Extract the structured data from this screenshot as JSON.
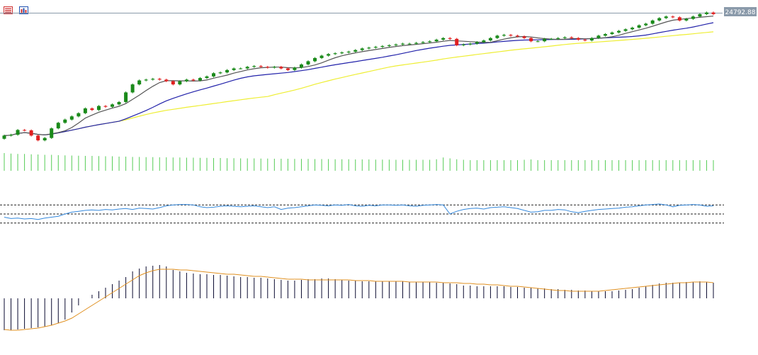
{
  "toolbar": {
    "items": [
      {
        "icon": "list-view-icon",
        "color": "#d03030"
      },
      {
        "icon": "indicator-window-icon",
        "color": "#2050b0"
      }
    ]
  },
  "chart_data": {
    "type": "candlestick",
    "price_label": "24792.88",
    "colors": {
      "up": "#1a8a1a",
      "down": "#e02020",
      "ma_short": "#555555",
      "ma_mid": "#2222aa",
      "ma_long": "#eeee33",
      "volume": "#55cc55",
      "rsi": "#3388dd",
      "macd_hist": "#0a0a30",
      "macd_signal": "#e09020",
      "price_tag_bg": "#8a9aaa"
    },
    "close": [
      22860,
      22870,
      22930,
      22925,
      22860,
      22800,
      22830,
      22950,
      23020,
      23060,
      23100,
      23140,
      23200,
      23180,
      23230,
      23220,
      23250,
      23280,
      23400,
      23500,
      23550,
      23560,
      23570,
      23560,
      23540,
      23500,
      23540,
      23560,
      23550,
      23580,
      23600,
      23640,
      23650,
      23680,
      23700,
      23700,
      23720,
      23730,
      23720,
      23710,
      23720,
      23700,
      23680,
      23710,
      23750,
      23790,
      23830,
      23860,
      23880,
      23890,
      23900,
      23910,
      23930,
      23950,
      23960,
      23970,
      23980,
      23990,
      24000,
      24010,
      24010,
      24020,
      24030,
      24040,
      24060,
      24080,
      24070,
      23990,
      24000,
      24010,
      24030,
      24050,
      24080,
      24110,
      24120,
      24110,
      24100,
      24080,
      24040,
      24040,
      24070,
      24070,
      24080,
      24090,
      24080,
      24060,
      24050,
      24080,
      24110,
      24130,
      24150,
      24170,
      24190,
      24210,
      24240,
      24260,
      24300,
      24330,
      24350,
      24340,
      24300,
      24320,
      24350,
      24380,
      24400,
      24380
    ],
    "volume": [
      1.0,
      0.97,
      0.95,
      0.95,
      0.93,
      0.92,
      0.9,
      0.9,
      0.88,
      0.87,
      0.86,
      0.85,
      0.84,
      0.84,
      0.83,
      0.82,
      0.82,
      0.8,
      0.8,
      0.78,
      0.78,
      0.77,
      0.77,
      0.76,
      0.76,
      0.75,
      0.75,
      0.74,
      0.74,
      0.73,
      0.73,
      0.72,
      0.72,
      0.71,
      0.71,
      0.7,
      0.7,
      0.7,
      0.69,
      0.69,
      0.68,
      0.68,
      0.68,
      0.67,
      0.67,
      0.67,
      0.66,
      0.66,
      0.66,
      0.65,
      0.65,
      0.65,
      0.64,
      0.64,
      0.64,
      0.63,
      0.63,
      0.63,
      0.62,
      0.62,
      0.62,
      0.62,
      0.62,
      0.62,
      0.65,
      0.75,
      0.7,
      0.65,
      0.62,
      0.6,
      0.6,
      0.6,
      0.6,
      0.6,
      0.6,
      0.6,
      0.6,
      0.62,
      0.64,
      0.6,
      0.6,
      0.6,
      0.6,
      0.6,
      0.6,
      0.6,
      0.6,
      0.6,
      0.6,
      0.6,
      0.6,
      0.6,
      0.6,
      0.6,
      0.6,
      0.6,
      0.6,
      0.6,
      0.6,
      0.6,
      0.6,
      0.6,
      0.6,
      0.6,
      0.6,
      0.6
    ],
    "rsi": {
      "levels": [
        70,
        50,
        30
      ],
      "values": [
        43,
        40,
        41,
        39,
        40,
        38,
        41,
        43,
        45,
        50,
        54,
        56,
        58,
        59,
        58,
        60,
        59,
        61,
        62,
        60,
        63,
        62,
        61,
        64,
        68,
        70,
        71,
        71,
        70,
        66,
        64,
        65,
        67,
        68,
        67,
        66,
        67,
        68,
        66,
        64,
        66,
        60,
        63,
        64,
        66,
        68,
        70,
        69,
        68,
        70,
        69,
        71,
        68,
        67,
        69,
        68,
        70,
        70,
        69,
        70,
        68,
        67,
        69,
        70,
        71,
        70,
        50,
        56,
        60,
        62,
        63,
        61,
        64,
        65,
        66,
        64,
        62,
        58,
        54,
        55,
        58,
        58,
        60,
        59,
        55,
        53,
        56,
        58,
        60,
        61,
        62,
        63,
        65,
        66,
        68,
        70,
        71,
        72,
        70,
        66,
        69,
        70,
        71,
        70,
        67,
        68
      ]
    },
    "macd": {
      "histogram": [
        -45,
        -45,
        -44,
        -43,
        -42,
        -41,
        -40,
        -38,
        -35,
        -30,
        -20,
        -10,
        0,
        5,
        10,
        15,
        20,
        25,
        30,
        38,
        42,
        45,
        46,
        47,
        45,
        40,
        38,
        36,
        35,
        34,
        34,
        33,
        33,
        32,
        31,
        30,
        30,
        29,
        29,
        28,
        27,
        26,
        25,
        25,
        26,
        27,
        27,
        28,
        28,
        27,
        26,
        25,
        25,
        24,
        24,
        24,
        24,
        24,
        24,
        24,
        23,
        23,
        23,
        23,
        22,
        22,
        21,
        20,
        18,
        18,
        17,
        17,
        17,
        17,
        17,
        16,
        16,
        15,
        15,
        14,
        14,
        13,
        13,
        12,
        12,
        11,
        11,
        10,
        10,
        10,
        10,
        11,
        12,
        13,
        15,
        17,
        19,
        21,
        22,
        22,
        22,
        23,
        23,
        24,
        23,
        22
      ],
      "signal": [
        -44,
        -45,
        -45,
        -44,
        -43,
        -42,
        -40,
        -38,
        -35,
        -32,
        -28,
        -22,
        -16,
        -10,
        -4,
        2,
        8,
        14,
        20,
        26,
        32,
        36,
        39,
        41,
        41,
        41,
        40,
        40,
        39,
        38,
        37,
        36,
        35,
        34,
        34,
        33,
        32,
        31,
        31,
        30,
        29,
        28,
        27,
        27,
        27,
        26,
        26,
        26,
        26,
        26,
        26,
        26,
        25,
        25,
        25,
        24,
        24,
        24,
        24,
        24,
        23,
        23,
        23,
        23,
        23,
        22,
        22,
        22,
        21,
        21,
        20,
        20,
        19,
        19,
        18,
        17,
        17,
        16,
        15,
        14,
        13,
        12,
        11,
        11,
        10,
        10,
        10,
        10,
        10,
        11,
        12,
        13,
        14,
        15,
        16,
        17,
        18,
        19,
        20,
        21,
        22,
        22,
        23,
        23,
        23,
        22
      ]
    }
  }
}
